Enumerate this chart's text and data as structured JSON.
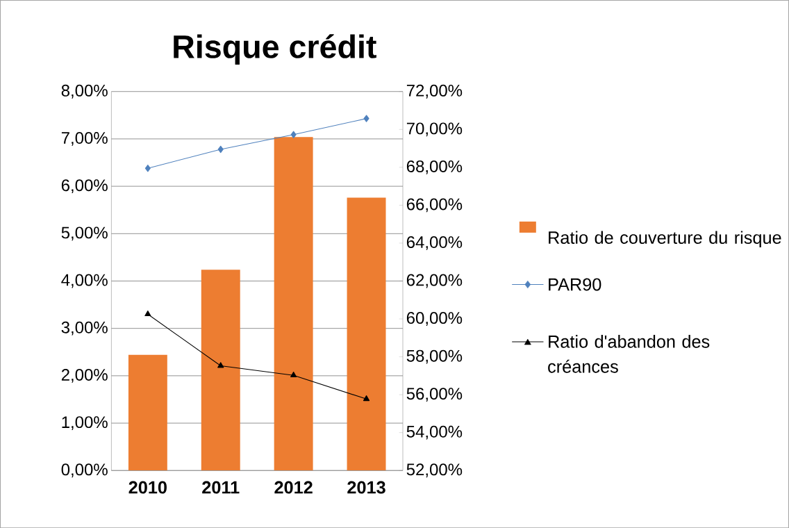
{
  "chart_data": {
    "type": "line",
    "title": "Risque crédit",
    "categories": [
      "2010",
      "2011",
      "2012",
      "2013"
    ],
    "series": [
      {
        "name": "Ratio de couverture du risque",
        "type": "bar",
        "axis": "y2",
        "color": "#ed7d31",
        "values": [
          58.1,
          62.6,
          69.6,
          66.4
        ]
      },
      {
        "name": "PAR90",
        "color": "#4f81bd",
        "marker": "diamond",
        "values": [
          6.38,
          6.78,
          7.09,
          7.43
        ]
      },
      {
        "name": "Ratio d'abandon des créances",
        "color": "#000000",
        "marker": "triangle",
        "values": [
          3.3,
          2.21,
          2.01,
          1.51
        ]
      }
    ],
    "ylim": [
      0,
      8
    ],
    "yticks": [
      {
        "value": 0,
        "label": "0,00%"
      },
      {
        "value": 1,
        "label": "1,00%"
      },
      {
        "value": 2,
        "label": "2,00%"
      },
      {
        "value": 3,
        "label": "3,00%"
      },
      {
        "value": 4,
        "label": "4,00%"
      },
      {
        "value": 5,
        "label": "5,00%"
      },
      {
        "value": 6,
        "label": "6,00%"
      },
      {
        "value": 7,
        "label": "7,00%"
      },
      {
        "value": 8,
        "label": "8,00%"
      }
    ],
    "y2lim": [
      52,
      72
    ],
    "y2ticks": [
      {
        "value": 52,
        "label": "52,00%"
      },
      {
        "value": 54,
        "label": "54,00%"
      },
      {
        "value": 56,
        "label": "56,00%"
      },
      {
        "value": 58,
        "label": "58,00%"
      },
      {
        "value": 60,
        "label": "60,00%"
      },
      {
        "value": 62,
        "label": "62,00%"
      },
      {
        "value": 64,
        "label": "64,00%"
      },
      {
        "value": 66,
        "label": "66,00%"
      },
      {
        "value": 68,
        "label": "68,00%"
      },
      {
        "value": 70,
        "label": "70,00%"
      },
      {
        "value": 72,
        "label": "72,00%"
      }
    ],
    "grid": "y",
    "legend": "right"
  }
}
